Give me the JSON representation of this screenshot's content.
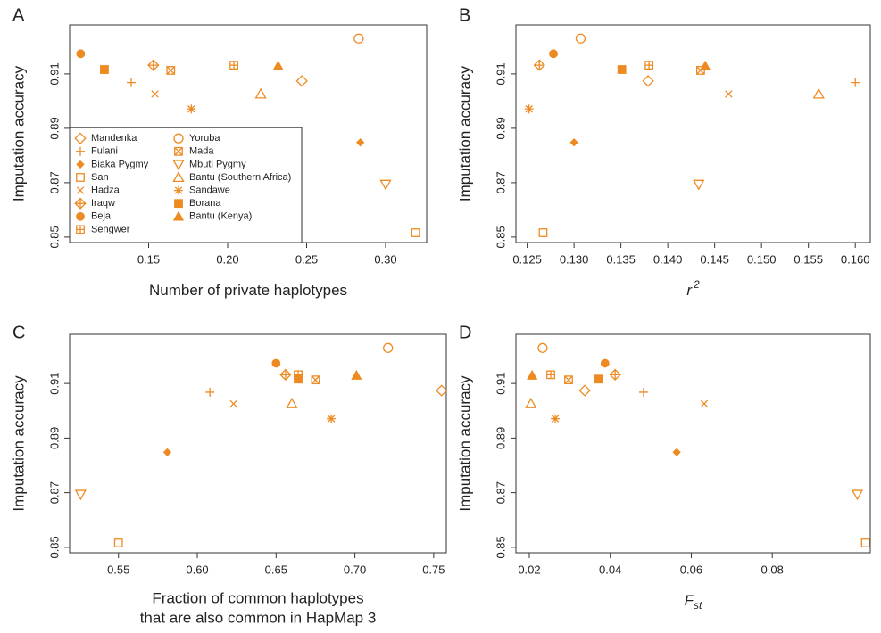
{
  "chart_data": [
    {
      "type": "scatter",
      "title": "A",
      "xlabel": "Number of private haplotypes",
      "ylabel": "Imputation accuracy",
      "color": "#ee8a22",
      "xlim": [
        0.1,
        0.326
      ],
      "ylim": [
        0.848,
        0.928
      ],
      "xticks": [
        0.15,
        {
          "value": 0.2,
          "label": "0.20"
        },
        0.25,
        {
          "value": 0.3,
          "label": "0.30"
        }
      ],
      "yticks": [
        0.85,
        0.87,
        0.89,
        0.91
      ],
      "legend_loc": "lower left",
      "series_names": [
        "Mandenka",
        "Fulani",
        "Biaka Pygmy",
        "San",
        "Hadza",
        "Iraqw",
        "Beja",
        "Sengwer",
        "Yoruba",
        "Mada",
        "Mbuti Pygmy",
        "Bantu (Southern Africa)",
        "Sandawe",
        "Borana",
        "Bantu (Kenya)"
      ],
      "markers": [
        "diamond",
        "plus",
        "diamond-small-filled",
        "square",
        "x",
        "diamond-plus",
        "circle-filled",
        "square-plus",
        "circle",
        "square-x",
        "triangle-down",
        "triangle-up",
        "asterisk",
        "square-filled",
        "triangle-up-filled"
      ],
      "x": [
        0.247,
        0.139,
        0.284,
        0.319,
        0.154,
        0.153,
        0.107,
        0.204,
        0.283,
        0.164,
        0.3,
        0.221,
        0.177,
        0.122,
        0.232
      ],
      "values": [
        0.9074,
        0.9068,
        0.8848,
        0.8516,
        0.9026,
        0.9132,
        0.9174,
        0.9132,
        0.923,
        0.9113,
        0.8694,
        0.9026,
        0.8971,
        0.9116,
        0.9129
      ]
    },
    {
      "type": "scatter",
      "title": "B",
      "xlabel": "r",
      "xlabel_sup": "2",
      "ylabel": "Imputation accuracy",
      "color": "#ee8a22",
      "xlim": [
        0.1238,
        0.1616
      ],
      "ylim": [
        0.848,
        0.928
      ],
      "xticks": [
        0.125,
        {
          "value": 0.13,
          "label": "0.130"
        },
        0.135,
        {
          "value": 0.14,
          "label": "0.140"
        },
        0.145,
        {
          "value": 0.15,
          "label": "0.150"
        },
        0.155,
        {
          "value": 0.16,
          "label": "0.160"
        }
      ],
      "yticks": [
        0.85,
        0.87,
        0.89,
        0.91
      ],
      "markers": [
        "diamond",
        "plus",
        "diamond-small-filled",
        "square",
        "x",
        "diamond-plus",
        "circle-filled",
        "square-plus",
        "circle",
        "square-x",
        "triangle-down",
        "triangle-up",
        "asterisk",
        "square-filled",
        "triangle-up-filled"
      ],
      "x": [
        0.1379,
        0.16,
        0.13,
        0.1267,
        0.1465,
        0.1263,
        0.1278,
        0.138,
        0.1307,
        0.1435,
        0.1433,
        0.1561,
        0.1252,
        0.1351,
        0.144
      ],
      "values": [
        0.9074,
        0.9068,
        0.8848,
        0.8516,
        0.9026,
        0.9132,
        0.9174,
        0.9132,
        0.923,
        0.9113,
        0.8694,
        0.9026,
        0.8971,
        0.9116,
        0.9129
      ]
    },
    {
      "type": "scatter",
      "title": "C",
      "xlabel": [
        "Fraction of common haplotypes",
        "that are also common in HapMap 3"
      ],
      "ylabel": "Imputation accuracy",
      "color": "#ee8a22",
      "xlim": [
        0.519,
        0.758
      ],
      "ylim": [
        0.848,
        0.928
      ],
      "xticks": [
        0.55,
        {
          "value": 0.6,
          "label": "0.60"
        },
        0.65,
        {
          "value": 0.7,
          "label": "0.70"
        },
        0.75
      ],
      "yticks": [
        0.85,
        0.87,
        0.89,
        0.91
      ],
      "markers": [
        "diamond",
        "plus",
        "diamond-small-filled",
        "square",
        "x",
        "diamond-plus",
        "circle-filled",
        "square-plus",
        "circle",
        "square-x",
        "triangle-down",
        "triangle-up",
        "asterisk",
        "square-filled",
        "triangle-up-filled"
      ],
      "x": [
        0.755,
        0.608,
        0.581,
        0.55,
        0.623,
        0.656,
        0.65,
        0.664,
        0.721,
        0.675,
        0.526,
        0.66,
        0.685,
        0.664,
        0.701
      ],
      "values": [
        0.9074,
        0.9068,
        0.8848,
        0.8516,
        0.9026,
        0.9132,
        0.9174,
        0.9132,
        0.923,
        0.9113,
        0.8694,
        0.9026,
        0.8971,
        0.9116,
        0.9129
      ]
    },
    {
      "type": "scatter",
      "title": "D",
      "xlabel": "F",
      "xlabel_sub": "st",
      "ylabel": "Imputation accuracy",
      "color": "#ee8a22",
      "xlim": [
        0.0167,
        0.1042
      ],
      "ylim": [
        0.848,
        0.928
      ],
      "xticks": [
        0.02,
        0.04,
        0.06,
        0.08
      ],
      "yticks": [
        0.85,
        0.87,
        0.89,
        0.91
      ],
      "markers": [
        "diamond",
        "plus",
        "diamond-small-filled",
        "square",
        "x",
        "diamond-plus",
        "circle-filled",
        "square-plus",
        "circle",
        "square-x",
        "triangle-down",
        "triangle-up",
        "asterisk",
        "square-filled",
        "triangle-up-filled"
      ],
      "x": [
        0.0337,
        0.0482,
        0.0564,
        0.103,
        0.0632,
        0.0412,
        0.0387,
        0.0253,
        0.0233,
        0.0297,
        0.101,
        0.0204,
        0.0264,
        0.037,
        0.0207
      ],
      "values": [
        0.9074,
        0.9068,
        0.8848,
        0.8516,
        0.9026,
        0.9132,
        0.9174,
        0.9132,
        0.923,
        0.9113,
        0.8694,
        0.9026,
        0.8971,
        0.9116,
        0.9129
      ]
    }
  ]
}
